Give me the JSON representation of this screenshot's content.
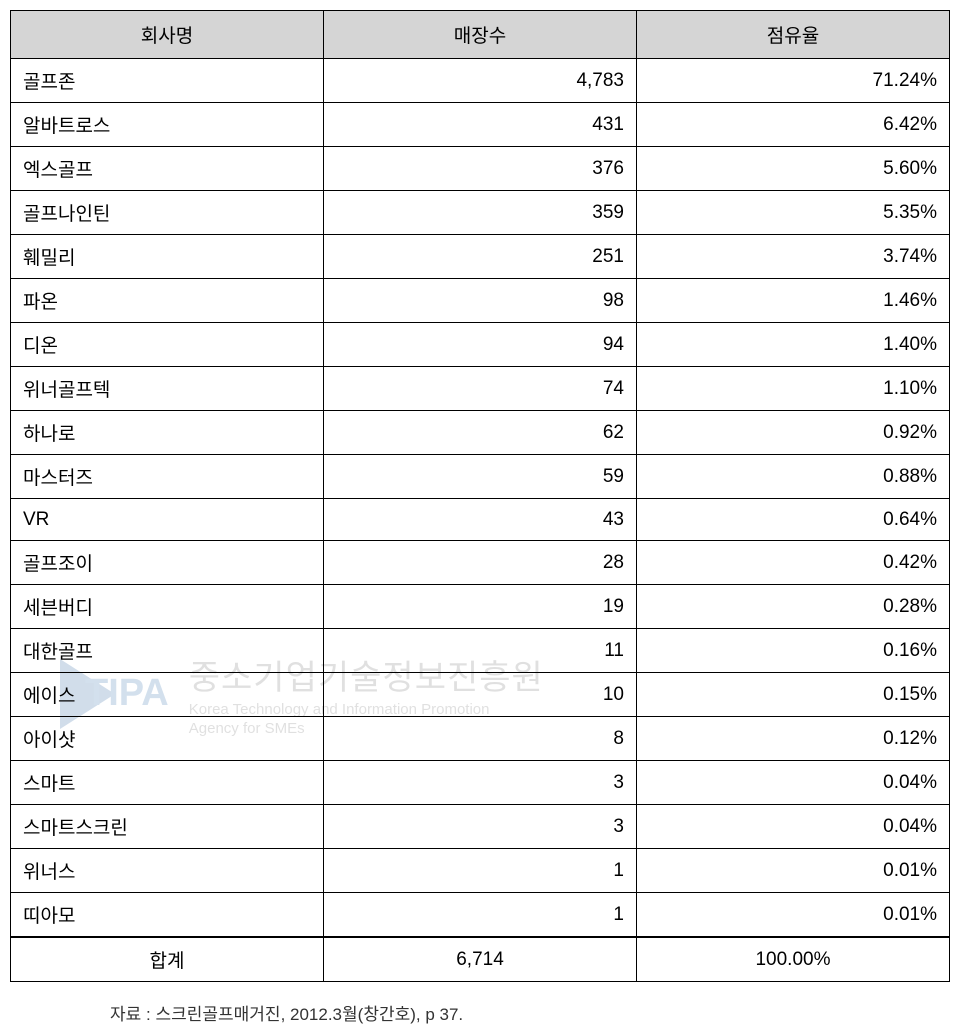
{
  "table": {
    "columns": [
      "회사명",
      "매장수",
      "점유율"
    ],
    "column_widths": [
      "33.3%",
      "33.3%",
      "33.4%"
    ],
    "header_bg": "#d5d5d5",
    "border_color": "#000000",
    "font_size": 19,
    "rows": [
      {
        "company": "골프존",
        "stores": "4,783",
        "share": "71.24%"
      },
      {
        "company": "알바트로스",
        "stores": "431",
        "share": "6.42%"
      },
      {
        "company": "엑스골프",
        "stores": "376",
        "share": "5.60%"
      },
      {
        "company": "골프나인틴",
        "stores": "359",
        "share": "5.35%"
      },
      {
        "company": "훼밀리",
        "stores": "251",
        "share": "3.74%"
      },
      {
        "company": "파온",
        "stores": "98",
        "share": "1.46%"
      },
      {
        "company": "디온",
        "stores": "94",
        "share": "1.40%"
      },
      {
        "company": "위너골프텍",
        "stores": "74",
        "share": "1.10%"
      },
      {
        "company": "하나로",
        "stores": "62",
        "share": "0.92%"
      },
      {
        "company": "마스터즈",
        "stores": "59",
        "share": "0.88%"
      },
      {
        "company": "VR",
        "stores": "43",
        "share": "0.64%"
      },
      {
        "company": "골프조이",
        "stores": "28",
        "share": "0.42%"
      },
      {
        "company": "세븐버디",
        "stores": "19",
        "share": "0.28%"
      },
      {
        "company": "대한골프",
        "stores": "11",
        "share": "0.16%"
      },
      {
        "company": "에이스",
        "stores": "10",
        "share": "0.15%"
      },
      {
        "company": "아이샷",
        "stores": "8",
        "share": "0.12%"
      },
      {
        "company": "스마트",
        "stores": "3",
        "share": "0.04%"
      },
      {
        "company": "스마트스크린",
        "stores": "3",
        "share": "0.04%"
      },
      {
        "company": "위너스",
        "stores": "1",
        "share": "0.01%"
      },
      {
        "company": "띠아모",
        "stores": "1",
        "share": "0.01%"
      }
    ],
    "total": {
      "label": "합계",
      "stores": "6,714",
      "share": "100.00%"
    }
  },
  "source": "자료 : 스크린골프매거진, 2012.3월(창간호), p 37.",
  "watermark": {
    "logo_text": "TIPA",
    "korean": "중소기업기술정보진흥원",
    "english_line1": "Korea Technology and Information Promotion",
    "english_line2": "Agency for SMEs",
    "logo_color": "#4a7cb0",
    "text_color": "#888888"
  }
}
